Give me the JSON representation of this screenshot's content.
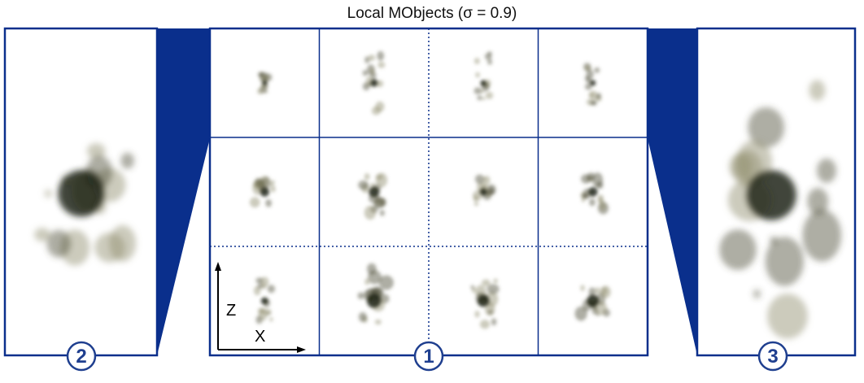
{
  "title": "Local MObjects (σ = 0.9)",
  "panels": {
    "left_badge": "2",
    "center_badge": "1",
    "right_badge": "3"
  },
  "axes": {
    "vertical_label": "Z",
    "horizontal_label": "X"
  },
  "colors": {
    "frame": "#0a2f8c",
    "badge_text": "#1f3f8f",
    "grid_dotted": "#0a2f8c",
    "blob_dark": "#1e2416",
    "blob_mid": "#4a4a35",
    "blob_light": "#8e8c6a"
  },
  "grid": {
    "rows": 3,
    "columns": 4
  }
}
